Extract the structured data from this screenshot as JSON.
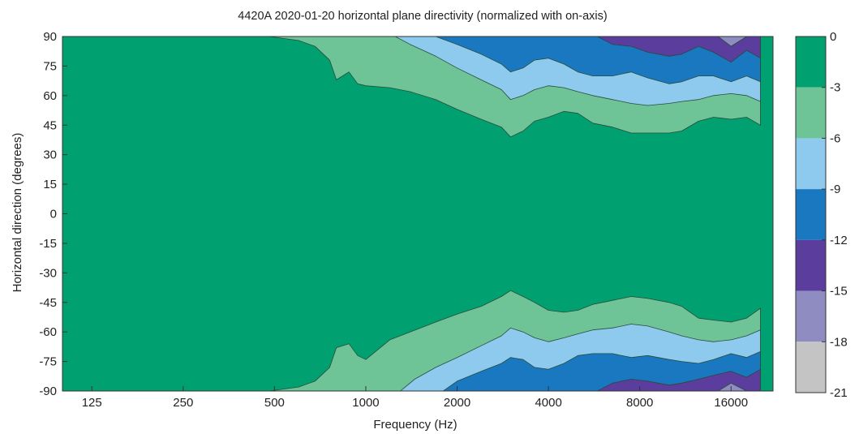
{
  "chart_data": {
    "type": "heatmap",
    "subtype": "filled-contour",
    "title": "4420A 2020-01-20 horizontal plane directivity (normalized with on-axis)",
    "xlabel": "Frequency (Hz)",
    "ylabel": "Horizontal direction (degrees)",
    "x_scale": "log",
    "xlim": [
      100,
      22000
    ],
    "ylim": [
      -90,
      90
    ],
    "x_ticks": [
      125,
      250,
      500,
      1000,
      2000,
      4000,
      8000,
      16000
    ],
    "x_tick_labels": [
      "125",
      "250",
      "500",
      "1000",
      "2000",
      "4000",
      "8000",
      "16000"
    ],
    "y_ticks": [
      90,
      75,
      60,
      45,
      30,
      15,
      0,
      -15,
      -30,
      -45,
      -60,
      -75,
      -90
    ],
    "y_tick_labels": [
      "90",
      "75",
      "60",
      "45",
      "30",
      "15",
      "0",
      "-15",
      "-30",
      "-45",
      "-60",
      "-75",
      "-90"
    ],
    "colorbar": {
      "levels": [
        0,
        -3,
        -6,
        -9,
        -12,
        -15,
        -18,
        -21
      ],
      "labels": [
        "0",
        "-3",
        "-6",
        "-9",
        "-12",
        "-15",
        "-18",
        "-21"
      ],
      "colors": [
        "#00a070",
        "#6ec496",
        "#8ecaee",
        "#1a78c0",
        "#5a3d9c",
        "#8e8cc0",
        "#c4c4c4"
      ]
    },
    "contour_boundaries": [
      {
        "level": -3,
        "points": [
          [
            480,
            90
          ],
          [
            600,
            88
          ],
          [
            680,
            85
          ],
          [
            760,
            78
          ],
          [
            800,
            68
          ],
          [
            880,
            72
          ],
          [
            940,
            66
          ],
          [
            1000,
            65
          ],
          [
            1200,
            64
          ],
          [
            1400,
            62
          ],
          [
            1700,
            58
          ],
          [
            2000,
            53
          ],
          [
            2400,
            48
          ],
          [
            2800,
            44
          ],
          [
            3000,
            39
          ],
          [
            3300,
            42
          ],
          [
            3600,
            47
          ],
          [
            4000,
            49
          ],
          [
            4500,
            52
          ],
          [
            5000,
            51
          ],
          [
            5600,
            46
          ],
          [
            6500,
            44
          ],
          [
            7500,
            41
          ],
          [
            8500,
            41
          ],
          [
            10000,
            41
          ],
          [
            11000,
            42
          ],
          [
            12500,
            47
          ],
          [
            14000,
            49
          ],
          [
            16000,
            48
          ],
          [
            18000,
            49
          ],
          [
            20000,
            45
          ]
        ]
      },
      {
        "level": -6,
        "points": [
          [
            1250,
            90
          ],
          [
            1400,
            86
          ],
          [
            1700,
            80
          ],
          [
            2000,
            74
          ],
          [
            2400,
            68
          ],
          [
            2800,
            63
          ],
          [
            3000,
            58
          ],
          [
            3300,
            60
          ],
          [
            3600,
            63
          ],
          [
            4000,
            65
          ],
          [
            4500,
            64
          ],
          [
            5000,
            62
          ],
          [
            5600,
            60
          ],
          [
            6500,
            58
          ],
          [
            7500,
            56
          ],
          [
            8500,
            55
          ],
          [
            10000,
            56
          ],
          [
            11000,
            57
          ],
          [
            12500,
            58
          ],
          [
            14000,
            60
          ],
          [
            16000,
            61
          ],
          [
            18000,
            60
          ],
          [
            20000,
            57
          ]
        ]
      },
      {
        "level": -9,
        "points": [
          [
            1700,
            90
          ],
          [
            2000,
            86
          ],
          [
            2400,
            81
          ],
          [
            2800,
            76
          ],
          [
            3000,
            72
          ],
          [
            3300,
            74
          ],
          [
            3600,
            78
          ],
          [
            4000,
            79
          ],
          [
            4500,
            76
          ],
          [
            5000,
            72
          ],
          [
            5600,
            70
          ],
          [
            6500,
            70
          ],
          [
            7500,
            72
          ],
          [
            8500,
            69
          ],
          [
            10000,
            66
          ],
          [
            11000,
            67
          ],
          [
            12500,
            70
          ],
          [
            14000,
            70
          ],
          [
            16000,
            67
          ],
          [
            18000,
            70
          ],
          [
            20000,
            67
          ]
        ]
      },
      {
        "level": -12,
        "points": [
          [
            5800,
            90
          ],
          [
            6500,
            86
          ],
          [
            7500,
            85
          ],
          [
            8500,
            82
          ],
          [
            10000,
            80
          ],
          [
            11000,
            81
          ],
          [
            12500,
            85
          ],
          [
            14000,
            82
          ],
          [
            16000,
            77
          ],
          [
            18000,
            83
          ],
          [
            20000,
            79
          ]
        ]
      },
      {
        "level": -15,
        "points": [
          [
            14500,
            90
          ],
          [
            16000,
            85
          ],
          [
            18000,
            90
          ]
        ]
      },
      {
        "level": -3,
        "points": [
          [
            480,
            -90
          ],
          [
            600,
            -88
          ],
          [
            680,
            -85
          ],
          [
            760,
            -78
          ],
          [
            800,
            -68
          ],
          [
            880,
            -66
          ],
          [
            940,
            -72
          ],
          [
            1000,
            -74
          ],
          [
            1200,
            -64
          ],
          [
            1400,
            -60
          ],
          [
            1700,
            -55
          ],
          [
            2000,
            -51
          ],
          [
            2400,
            -47
          ],
          [
            2800,
            -42
          ],
          [
            3000,
            -39
          ],
          [
            3300,
            -42
          ],
          [
            3600,
            -45
          ],
          [
            4000,
            -49
          ],
          [
            4500,
            -50
          ],
          [
            5000,
            -49
          ],
          [
            5600,
            -46
          ],
          [
            6500,
            -44
          ],
          [
            7500,
            -42
          ],
          [
            8500,
            -43
          ],
          [
            10000,
            -45
          ],
          [
            11000,
            -47
          ],
          [
            12500,
            -53
          ],
          [
            14000,
            -54
          ],
          [
            16000,
            -55
          ],
          [
            18000,
            -53
          ],
          [
            20000,
            -48
          ]
        ]
      },
      {
        "level": -6,
        "points": [
          [
            1300,
            -90
          ],
          [
            1450,
            -84
          ],
          [
            1700,
            -78
          ],
          [
            2000,
            -73
          ],
          [
            2400,
            -67
          ],
          [
            2800,
            -62
          ],
          [
            3000,
            -58
          ],
          [
            3300,
            -60
          ],
          [
            3600,
            -63
          ],
          [
            4000,
            -65
          ],
          [
            4500,
            -63
          ],
          [
            5000,
            -61
          ],
          [
            5600,
            -59
          ],
          [
            6500,
            -58
          ],
          [
            7500,
            -56
          ],
          [
            8500,
            -57
          ],
          [
            10000,
            -60
          ],
          [
            11000,
            -62
          ],
          [
            12500,
            -64
          ],
          [
            14000,
            -65
          ],
          [
            16000,
            -64
          ],
          [
            18000,
            -62
          ],
          [
            20000,
            -59
          ]
        ]
      },
      {
        "level": -9,
        "points": [
          [
            1800,
            -90
          ],
          [
            2000,
            -85
          ],
          [
            2400,
            -80
          ],
          [
            2800,
            -76
          ],
          [
            3000,
            -73
          ],
          [
            3300,
            -74
          ],
          [
            3600,
            -78
          ],
          [
            4000,
            -79
          ],
          [
            4500,
            -76
          ],
          [
            5000,
            -72
          ],
          [
            5600,
            -71
          ],
          [
            6500,
            -71
          ],
          [
            7500,
            -73
          ],
          [
            8500,
            -72
          ],
          [
            10000,
            -74
          ],
          [
            11000,
            -75
          ],
          [
            12500,
            -76
          ],
          [
            14000,
            -74
          ],
          [
            16000,
            -71
          ],
          [
            18000,
            -73
          ],
          [
            20000,
            -70
          ]
        ]
      },
      {
        "level": -12,
        "points": [
          [
            5800,
            -90
          ],
          [
            6500,
            -86
          ],
          [
            7500,
            -84
          ],
          [
            8500,
            -85
          ],
          [
            10000,
            -87
          ],
          [
            11000,
            -86
          ],
          [
            12500,
            -84
          ],
          [
            14000,
            -82
          ],
          [
            16000,
            -80
          ],
          [
            18000,
            -83
          ],
          [
            20000,
            -79
          ]
        ]
      },
      {
        "level": -15,
        "points": [
          [
            14500,
            -90
          ],
          [
            16000,
            -86
          ],
          [
            18000,
            -90
          ]
        ]
      }
    ]
  }
}
